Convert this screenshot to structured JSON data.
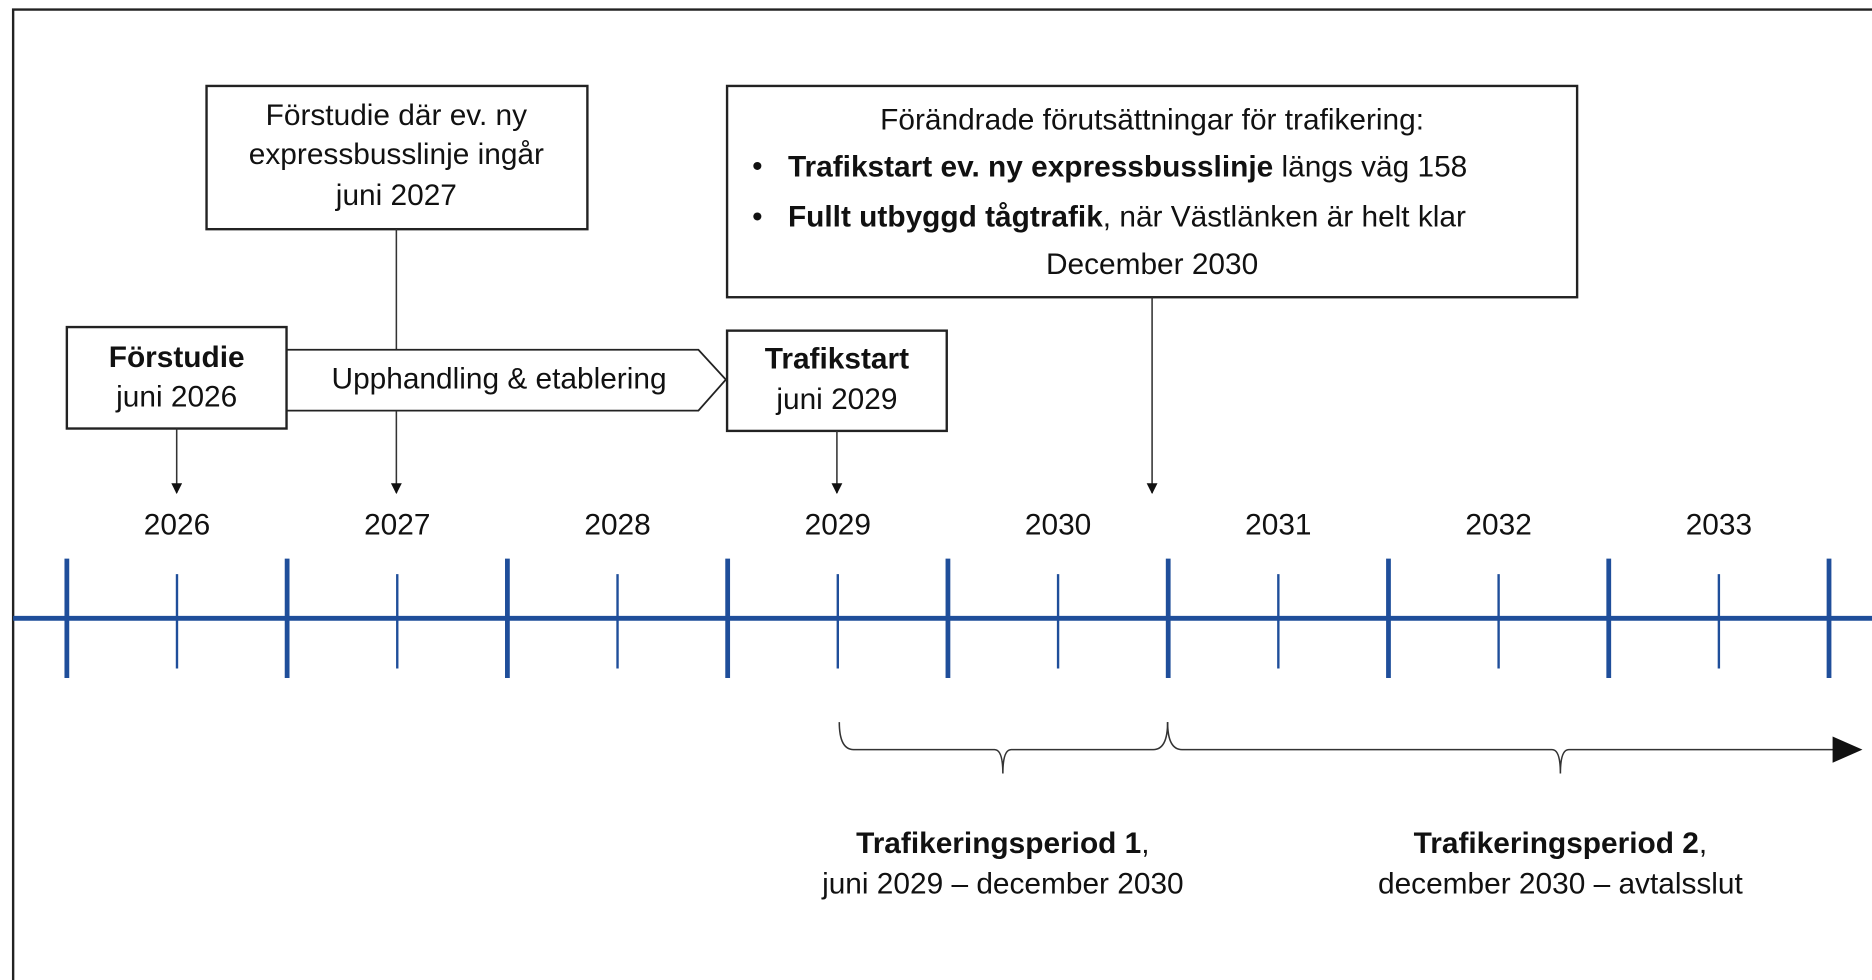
{
  "note_box": {
    "lines": [
      "Förstudie där ev. ny",
      "expressbusslinje ingår",
      "juni 2027"
    ]
  },
  "change_box": {
    "title": "Förändrade förutsättningar för trafikering:",
    "bullets": [
      {
        "bold": "Trafikstart ev. ny expressbusslinje",
        "rest": " längs väg 158"
      },
      {
        "bold": "Fullt utbyggd tågtrafik",
        "rest": ", när Västlänken är helt klar"
      }
    ],
    "footer": "December 2030"
  },
  "milestones": [
    {
      "title": "Förstudie",
      "date": "juni 2026"
    },
    {
      "title": "Trafikstart",
      "date": "juni 2029"
    }
  ],
  "phase": "Upphandling & etablering",
  "years": [
    "2026",
    "2027",
    "2028",
    "2029",
    "2030",
    "2031",
    "2032",
    "2033"
  ],
  "periods": [
    {
      "bold": "Trafikeringsperiod 1",
      "rest": ",",
      "range": "juni 2029 – december 2030"
    },
    {
      "bold": "Trafikeringsperiod 2",
      "rest": ",",
      "range": "december 2030 – avtalsslut"
    }
  ]
}
